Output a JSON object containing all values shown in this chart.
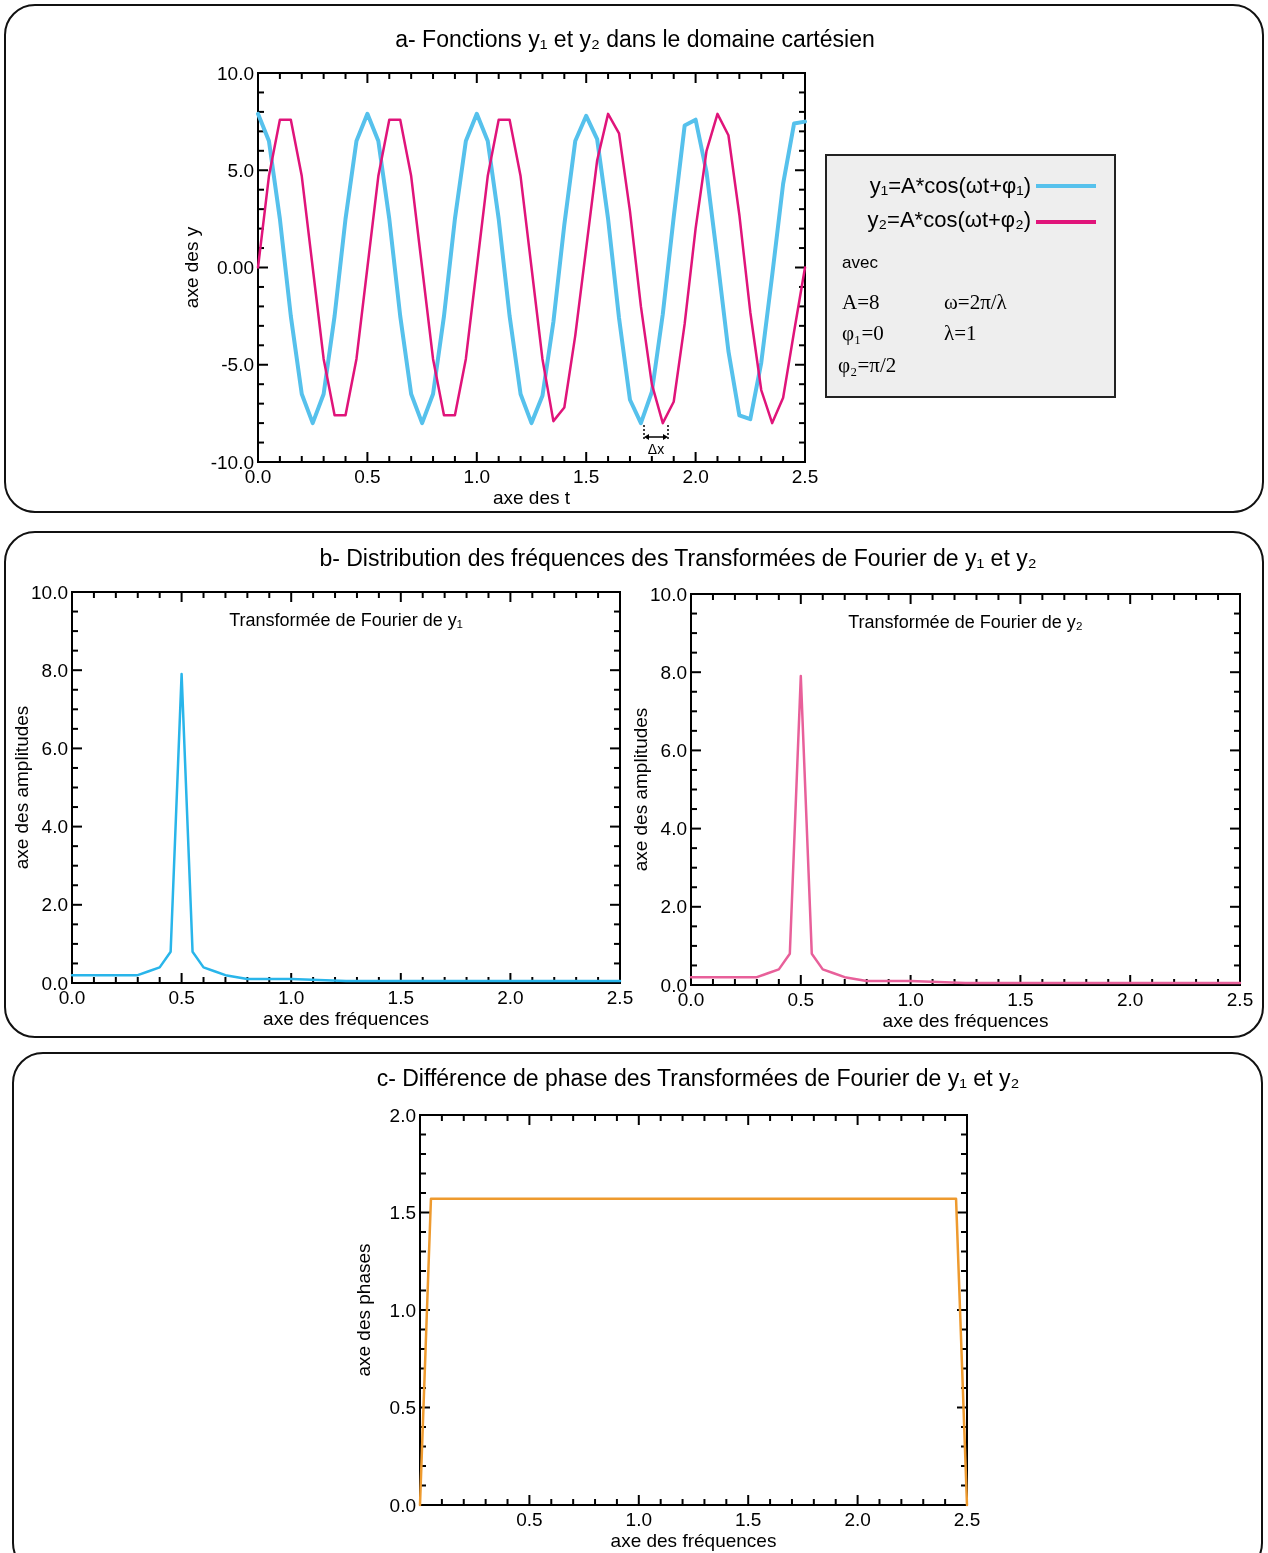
{
  "chart_data": [
    {
      "type": "line",
      "title": "a- Fonctions y₁ et y₂ dans le domaine cartésien",
      "xlabel": "axe des t",
      "ylabel": "axe des y",
      "legend": "right",
      "x": [
        0,
        0.05,
        0.1,
        0.15,
        0.2,
        0.25,
        0.3,
        0.35,
        0.4,
        0.45,
        0.5,
        0.55,
        0.6,
        0.65,
        0.7,
        0.75,
        0.8,
        0.85,
        0.9,
        0.95,
        1.0,
        1.05,
        1.1,
        1.15,
        1.2,
        1.25,
        1.3,
        1.35,
        1.4,
        1.45,
        1.5,
        1.55,
        1.6,
        1.65,
        1.7,
        1.75,
        1.8,
        1.85,
        1.9,
        1.95,
        2.0,
        2.05,
        2.1,
        2.15,
        2.2,
        2.25,
        2.3,
        2.35,
        2.4,
        2.45,
        2.5
      ],
      "series": [
        {
          "name": "y₁=A*cos(ωt+φ₁)",
          "color": "#56c1ec",
          "values": [
            7.9,
            6.5,
            2.5,
            -2.5,
            -6.5,
            -8,
            -6.5,
            -2.5,
            2.5,
            6.5,
            7.9,
            6.5,
            2.5,
            -2.5,
            -6.5,
            -8,
            -6.5,
            -2.5,
            2.5,
            6.5,
            7.9,
            6.5,
            2.5,
            -2.5,
            -6.5,
            -8,
            -6.6,
            -2.8,
            2.2,
            6.5,
            7.8,
            6.6,
            2.5,
            -2.6,
            -6.8,
            -8.0,
            -6.4,
            -2.4,
            2.6,
            7.3,
            7.6,
            4.9,
            0.4,
            -4.3,
            -7.6,
            -7.8,
            -4.9,
            -0.4,
            4.3,
            7.4,
            7.5
          ]
        },
        {
          "name": "y₂=A*cos(ωt+φ₂)",
          "color": "#e0147a",
          "values": [
            0,
            4.7,
            7.6,
            7.6,
            4.7,
            0,
            -4.7,
            -7.6,
            -7.6,
            -4.7,
            0,
            4.7,
            7.6,
            7.6,
            4.7,
            0,
            -4.7,
            -7.6,
            -7.6,
            -4.7,
            0,
            4.7,
            7.6,
            7.6,
            4.7,
            0,
            -4.7,
            -7.9,
            -7.2,
            -3.5,
            1.0,
            5.5,
            7.9,
            6.9,
            2.9,
            -2.0,
            -6.0,
            -8.0,
            -6.9,
            -2.9,
            2.0,
            6.0,
            7.9,
            6.8,
            2.7,
            -2.3,
            -6.3,
            -8.0,
            -6.7,
            -3.3,
            0.0
          ]
        }
      ],
      "xlim": [
        0,
        2.5
      ],
      "ylim": [
        -10,
        10
      ],
      "xticks": [
        {
          "value": 0,
          "label": "0.0"
        },
        {
          "value": 0.1,
          "label": null
        },
        {
          "value": 0.2,
          "label": null
        },
        {
          "value": 0.3,
          "label": null
        },
        {
          "value": 0.4,
          "label": null
        },
        0.5,
        {
          "value": 0.6,
          "label": null
        },
        {
          "value": 0.7,
          "label": null
        },
        {
          "value": 0.8,
          "label": null
        },
        {
          "value": 0.9,
          "label": null
        },
        {
          "value": 1,
          "label": "1.0"
        },
        {
          "value": 1.1,
          "label": null
        },
        {
          "value": 1.2,
          "label": null
        },
        {
          "value": 1.3,
          "label": null
        },
        {
          "value": 1.4,
          "label": null
        },
        1.5,
        {
          "value": 1.6,
          "label": null
        },
        {
          "value": 1.7,
          "label": null
        },
        {
          "value": 1.8,
          "label": null
        },
        {
          "value": 1.9,
          "label": null
        },
        {
          "value": 2,
          "label": "2.0"
        },
        {
          "value": 2.1,
          "label": null
        },
        {
          "value": 2.2,
          "label": null
        },
        {
          "value": 2.3,
          "label": null
        },
        {
          "value": 2.4,
          "label": null
        },
        2.5
      ],
      "yticks": [
        {
          "value": -10,
          "label": "-10.0"
        },
        {
          "value": -9,
          "label": null
        },
        {
          "value": -8,
          "label": null
        },
        {
          "value": -7,
          "label": null
        },
        {
          "value": -6,
          "label": null
        },
        {
          "value": -5,
          "label": "-5.0"
        },
        {
          "value": -4,
          "label": null
        },
        {
          "value": -3,
          "label": null
        },
        {
          "value": -2,
          "label": null
        },
        {
          "value": -1,
          "label": null
        },
        {
          "value": 0,
          "label": "0.00"
        },
        {
          "value": 1,
          "label": null
        },
        {
          "value": 2,
          "label": null
        },
        {
          "value": 3,
          "label": null
        },
        {
          "value": 4,
          "label": null
        },
        {
          "value": 5,
          "label": "5.0"
        },
        {
          "value": 6,
          "label": null
        },
        {
          "value": 7,
          "label": null
        },
        {
          "value": 8,
          "label": null
        },
        {
          "value": 9,
          "label": null
        },
        {
          "value": 10,
          "label": "10.0"
        }
      ],
      "annotations": [
        "avec",
        "A=8",
        "ω=2π/λ",
        "φ₁=0",
        "λ=1",
        "φ₂=π/2",
        "Δx"
      ]
    },
    {
      "type": "line",
      "title": "b- Distribution des fréquences des Transformées de Fourier de y₁ et y₂",
      "subtitle": "Transformée de Fourier de y₁",
      "xlabel": "axe des fréquences",
      "ylabel": "axe des amplitudes",
      "x": [
        0,
        0.1,
        0.2,
        0.25,
        0.3,
        0.35,
        0.4,
        0.45,
        0.5,
        0.55,
        0.6,
        0.65,
        0.7,
        0.8,
        0.9,
        1.0,
        1.25,
        1.5,
        2.0,
        2.5
      ],
      "series": [
        {
          "color": "#29b5ea",
          "values": [
            0.2,
            0.2,
            0.2,
            0.2,
            0.2,
            0.3,
            0.4,
            0.8,
            7.9,
            0.8,
            0.4,
            0.3,
            0.2,
            0.1,
            0.1,
            0.1,
            0.05,
            0.05,
            0.05,
            0.05
          ]
        }
      ],
      "xlim": [
        0,
        2.5
      ],
      "ylim": [
        0,
        10
      ],
      "xticks": [
        {
          "value": 0,
          "label": "0.0"
        },
        {
          "value": 0.1,
          "label": null
        },
        {
          "value": 0.2,
          "label": null
        },
        {
          "value": 0.3,
          "label": null
        },
        {
          "value": 0.4,
          "label": null
        },
        0.5,
        {
          "value": 0.6,
          "label": null
        },
        {
          "value": 0.7,
          "label": null
        },
        {
          "value": 0.8,
          "label": null
        },
        {
          "value": 0.9,
          "label": null
        },
        {
          "value": 1,
          "label": "1.0"
        },
        {
          "value": 1.1,
          "label": null
        },
        {
          "value": 1.2,
          "label": null
        },
        {
          "value": 1.3,
          "label": null
        },
        {
          "value": 1.4,
          "label": null
        },
        1.5,
        {
          "value": 1.6,
          "label": null
        },
        {
          "value": 1.7,
          "label": null
        },
        {
          "value": 1.8,
          "label": null
        },
        {
          "value": 1.9,
          "label": null
        },
        {
          "value": 2,
          "label": "2.0"
        },
        {
          "value": 2.1,
          "label": null
        },
        {
          "value": 2.2,
          "label": null
        },
        {
          "value": 2.3,
          "label": null
        },
        {
          "value": 2.4,
          "label": null
        },
        2.5
      ],
      "yticks": [
        {
          "value": 0,
          "label": "0.0"
        },
        {
          "value": 0.5,
          "label": null
        },
        {
          "value": 1,
          "label": null
        },
        {
          "value": 1.5,
          "label": null
        },
        {
          "value": 2,
          "label": "2.0"
        },
        {
          "value": 2.5,
          "label": null
        },
        {
          "value": 3,
          "label": null
        },
        {
          "value": 3.5,
          "label": null
        },
        {
          "value": 4,
          "label": "4.0"
        },
        {
          "value": 4.5,
          "label": null
        },
        {
          "value": 5,
          "label": null
        },
        {
          "value": 5.5,
          "label": null
        },
        {
          "value": 6,
          "label": "6.0"
        },
        {
          "value": 6.5,
          "label": null
        },
        {
          "value": 7,
          "label": null
        },
        {
          "value": 7.5,
          "label": null
        },
        {
          "value": 8,
          "label": "8.0"
        },
        {
          "value": 8.5,
          "label": null
        },
        {
          "value": 9,
          "label": null
        },
        {
          "value": 9.5,
          "label": null
        },
        {
          "value": 10,
          "label": "10.0"
        }
      ]
    },
    {
      "type": "line",
      "subtitle": "Transformée de Fourier de y₂",
      "xlabel": "axe des fréquences",
      "ylabel": "axe des amplitudes",
      "x": [
        0,
        0.1,
        0.2,
        0.25,
        0.3,
        0.35,
        0.4,
        0.45,
        0.5,
        0.55,
        0.6,
        0.65,
        0.7,
        0.8,
        0.9,
        1.0,
        1.25,
        1.5,
        2.0,
        2.5
      ],
      "series": [
        {
          "color": "#e8609a",
          "values": [
            0.2,
            0.2,
            0.2,
            0.2,
            0.2,
            0.3,
            0.4,
            0.8,
            7.9,
            0.8,
            0.4,
            0.3,
            0.2,
            0.1,
            0.1,
            0.1,
            0.05,
            0.05,
            0.05,
            0.05
          ]
        }
      ],
      "xlim": [
        0,
        2.5
      ],
      "ylim": [
        0,
        10
      ],
      "xticks": [
        {
          "value": 0,
          "label": "0.0"
        },
        {
          "value": 0.1,
          "label": null
        },
        {
          "value": 0.2,
          "label": null
        },
        {
          "value": 0.3,
          "label": null
        },
        {
          "value": 0.4,
          "label": null
        },
        0.5,
        {
          "value": 0.6,
          "label": null
        },
        {
          "value": 0.7,
          "label": null
        },
        {
          "value": 0.8,
          "label": null
        },
        {
          "value": 0.9,
          "label": null
        },
        {
          "value": 1,
          "label": "1.0"
        },
        {
          "value": 1.1,
          "label": null
        },
        {
          "value": 1.2,
          "label": null
        },
        {
          "value": 1.3,
          "label": null
        },
        {
          "value": 1.4,
          "label": null
        },
        1.5,
        {
          "value": 1.6,
          "label": null
        },
        {
          "value": 1.7,
          "label": null
        },
        {
          "value": 1.8,
          "label": null
        },
        {
          "value": 1.9,
          "label": null
        },
        {
          "value": 2,
          "label": "2.0"
        },
        {
          "value": 2.1,
          "label": null
        },
        {
          "value": 2.2,
          "label": null
        },
        {
          "value": 2.3,
          "label": null
        },
        {
          "value": 2.4,
          "label": null
        },
        2.5
      ],
      "yticks": [
        {
          "value": 0,
          "label": "0.0"
        },
        {
          "value": 0.5,
          "label": null
        },
        {
          "value": 1,
          "label": null
        },
        {
          "value": 1.5,
          "label": null
        },
        {
          "value": 2,
          "label": "2.0"
        },
        {
          "value": 2.5,
          "label": null
        },
        {
          "value": 3,
          "label": null
        },
        {
          "value": 3.5,
          "label": null
        },
        {
          "value": 4,
          "label": "4.0"
        },
        {
          "value": 4.5,
          "label": null
        },
        {
          "value": 5,
          "label": null
        },
        {
          "value": 5.5,
          "label": null
        },
        {
          "value": 6,
          "label": "6.0"
        },
        {
          "value": 6.5,
          "label": null
        },
        {
          "value": 7,
          "label": null
        },
        {
          "value": 7.5,
          "label": null
        },
        {
          "value": 8,
          "label": "8.0"
        },
        {
          "value": 8.5,
          "label": null
        },
        {
          "value": 9,
          "label": null
        },
        {
          "value": 9.5,
          "label": null
        },
        {
          "value": 10,
          "label": "10.0"
        }
      ]
    },
    {
      "type": "line",
      "title": "c- Différence de phase des Transformées de Fourier de y₁ et y₂",
      "xlabel": "axe des fréquences",
      "ylabel": "axe des phases",
      "x": [
        0,
        0.05,
        2.45,
        2.5
      ],
      "series": [
        {
          "color": "#ee9a2e",
          "values": [
            0,
            1.57,
            1.57,
            0
          ]
        }
      ],
      "xlim": [
        0,
        2.5
      ],
      "ylim": [
        0,
        2
      ],
      "xticks": [
        {
          "value": 0,
          "label": null
        },
        {
          "value": 0.1,
          "label": null
        },
        {
          "value": 0.2,
          "label": null
        },
        {
          "value": 0.3,
          "label": null
        },
        {
          "value": 0.4,
          "label": null
        },
        0.5,
        {
          "value": 0.6,
          "label": null
        },
        {
          "value": 0.7,
          "label": null
        },
        {
          "value": 0.8,
          "label": null
        },
        {
          "value": 0.9,
          "label": null
        },
        {
          "value": 1,
          "label": "1.0"
        },
        {
          "value": 1.1,
          "label": null
        },
        {
          "value": 1.2,
          "label": null
        },
        {
          "value": 1.3,
          "label": null
        },
        {
          "value": 1.4,
          "label": null
        },
        1.5,
        {
          "value": 1.6,
          "label": null
        },
        {
          "value": 1.7,
          "label": null
        },
        {
          "value": 1.8,
          "label": null
        },
        {
          "value": 1.9,
          "label": null
        },
        {
          "value": 2,
          "label": "2.0"
        },
        {
          "value": 2.1,
          "label": null
        },
        {
          "value": 2.2,
          "label": null
        },
        {
          "value": 2.3,
          "label": null
        },
        {
          "value": 2.4,
          "label": null
        },
        2.5
      ],
      "yticks": [
        {
          "value": 0,
          "label": "0.0"
        },
        {
          "value": 0.1,
          "label": null
        },
        {
          "value": 0.2,
          "label": null
        },
        {
          "value": 0.3,
          "label": null
        },
        {
          "value": 0.4,
          "label": null
        },
        0.5,
        {
          "value": 0.6,
          "label": null
        },
        {
          "value": 0.7,
          "label": null
        },
        {
          "value": 0.8,
          "label": null
        },
        {
          "value": 0.9,
          "label": null
        },
        {
          "value": 1,
          "label": "1.0"
        },
        {
          "value": 1.1,
          "label": null
        },
        {
          "value": 1.2,
          "label": null
        },
        {
          "value": 1.3,
          "label": null
        },
        {
          "value": 1.4,
          "label": null
        },
        1.5,
        {
          "value": 1.6,
          "label": null
        },
        {
          "value": 1.7,
          "label": null
        },
        {
          "value": 1.8,
          "label": null
        },
        {
          "value": 1.9,
          "label": null
        },
        {
          "value": 2,
          "label": "2.0"
        }
      ]
    }
  ]
}
